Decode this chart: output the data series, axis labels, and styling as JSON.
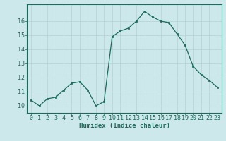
{
  "x": [
    0,
    1,
    2,
    3,
    4,
    5,
    6,
    7,
    8,
    9,
    10,
    11,
    12,
    13,
    14,
    15,
    16,
    17,
    18,
    19,
    20,
    21,
    22,
    23
  ],
  "y": [
    10.4,
    10.0,
    10.5,
    10.6,
    11.1,
    11.6,
    11.7,
    11.1,
    10.0,
    10.3,
    14.9,
    15.3,
    15.5,
    16.0,
    16.7,
    16.3,
    16.0,
    15.9,
    15.1,
    14.3,
    12.8,
    12.2,
    11.8,
    11.3
  ],
  "line_color": "#1a6b5a",
  "marker_color": "#1a6b5a",
  "bg_color": "#cce8ea",
  "grid_color_major": "#b8d4d6",
  "grid_color_minor": "#d4e8ea",
  "axis_color": "#1a6b5a",
  "xlabel": "Humidex (Indice chaleur)",
  "ylim": [
    9.5,
    17.2
  ],
  "xlim": [
    -0.5,
    23.5
  ],
  "yticks": [
    10,
    11,
    12,
    13,
    14,
    15,
    16
  ],
  "xticks": [
    0,
    1,
    2,
    3,
    4,
    5,
    6,
    7,
    8,
    9,
    10,
    11,
    12,
    13,
    14,
    15,
    16,
    17,
    18,
    19,
    20,
    21,
    22,
    23
  ],
  "tick_fontsize": 6.0,
  "xlabel_fontsize": 6.5
}
